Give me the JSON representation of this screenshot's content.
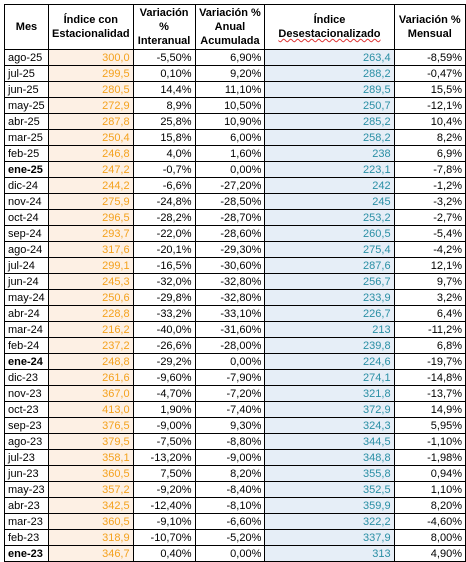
{
  "headers": {
    "mes": "Mes",
    "indice_con": "Índice con Estacionalidad",
    "var_interanual": "Variación % Interanual",
    "var_acumulada": "Variación % Anual Acumulada",
    "indice_des_a": "Índice ",
    "indice_des_b": "Desestacionalizado",
    "var_mensual": "Variación % Mensual"
  },
  "rows": [
    {
      "mes": "ago-25",
      "ie": "300,0",
      "vi": "-5,50%",
      "va": "6,90%",
      "id": "263,4",
      "vm": "-8,59%",
      "bold": false
    },
    {
      "mes": "jul-25",
      "ie": "299,5",
      "vi": "0,10%",
      "va": "9,20%",
      "id": "288,2",
      "vm": "-0,47%",
      "bold": false
    },
    {
      "mes": "jun-25",
      "ie": "280,5",
      "vi": "14,4%",
      "va": "11,10%",
      "id": "289,5",
      "vm": "15,5%",
      "bold": false
    },
    {
      "mes": "may-25",
      "ie": "272,9",
      "vi": "8,9%",
      "va": "10,50%",
      "id": "250,7",
      "vm": "-12,1%",
      "bold": false
    },
    {
      "mes": "abr-25",
      "ie": "287,8",
      "vi": "25,8%",
      "va": "10,90%",
      "id": "285,2",
      "vm": "10,4%",
      "bold": false
    },
    {
      "mes": "mar-25",
      "ie": "250,4",
      "vi": "15,8%",
      "va": "6,00%",
      "id": "258,2",
      "vm": "8,2%",
      "bold": false
    },
    {
      "mes": "feb-25",
      "ie": "246,8",
      "vi": "4,0%",
      "va": "1,60%",
      "id": "238",
      "vm": "6,9%",
      "bold": false
    },
    {
      "mes": "ene-25",
      "ie": "247,2",
      "vi": "-0,7%",
      "va": "0,00%",
      "id": "223,1",
      "vm": "-7,8%",
      "bold": true
    },
    {
      "mes": "dic-24",
      "ie": "244,2",
      "vi": "-6,6%",
      "va": "-27,20%",
      "id": "242",
      "vm": "-1,2%",
      "bold": false
    },
    {
      "mes": "nov-24",
      "ie": "275,9",
      "vi": "-24,8%",
      "va": "-28,50%",
      "id": "245",
      "vm": "-3,2%",
      "bold": false
    },
    {
      "mes": "oct-24",
      "ie": "296,5",
      "vi": "-28,2%",
      "va": "-28,70%",
      "id": "253,2",
      "vm": "-2,7%",
      "bold": false
    },
    {
      "mes": "sep-24",
      "ie": "293,7",
      "vi": "-22,0%",
      "va": "-28,60%",
      "id": "260,5",
      "vm": "-5,4%",
      "bold": false
    },
    {
      "mes": "ago-24",
      "ie": "317,6",
      "vi": "-20,1%",
      "va": "-29,30%",
      "id": "275,4",
      "vm": "-4,2%",
      "bold": false
    },
    {
      "mes": "jul-24",
      "ie": "299,1",
      "vi": "-16,5%",
      "va": "-30,60%",
      "id": "287,6",
      "vm": "12,1%",
      "bold": false
    },
    {
      "mes": "jun-24",
      "ie": "245,3",
      "vi": "-32,0%",
      "va": "-32,80%",
      "id": "256,7",
      "vm": "9,7%",
      "bold": false
    },
    {
      "mes": "may-24",
      "ie": "250,6",
      "vi": "-29,8%",
      "va": "-32,80%",
      "id": "233,9",
      "vm": "3,2%",
      "bold": false
    },
    {
      "mes": "abr-24",
      "ie": "228,8",
      "vi": "-33,2%",
      "va": "-33,10%",
      "id": "226,7",
      "vm": "6,4%",
      "bold": false
    },
    {
      "mes": "mar-24",
      "ie": "216,2",
      "vi": "-40,0%",
      "va": "-31,60%",
      "id": "213",
      "vm": "-11,2%",
      "bold": false
    },
    {
      "mes": "feb-24",
      "ie": "237,2",
      "vi": "-26,6%",
      "va": "-28,00%",
      "id": "239,8",
      "vm": "6,8%",
      "bold": false
    },
    {
      "mes": "ene-24",
      "ie": "248,8",
      "vi": "-29,2%",
      "va": "0,00%",
      "id": "224,6",
      "vm": "-19,7%",
      "bold": true
    },
    {
      "mes": "dic-23",
      "ie": "261,6",
      "vi": "-9,60%",
      "va": "-7,90%",
      "id": "274,1",
      "vm": "-14,8%",
      "bold": false
    },
    {
      "mes": "nov-23",
      "ie": "367,0",
      "vi": "-4,70%",
      "va": "-7,20%",
      "id": "321,8",
      "vm": "-13,7%",
      "bold": false
    },
    {
      "mes": "oct-23",
      "ie": "413,0",
      "vi": "1,90%",
      "va": "-7,40%",
      "id": "372,9",
      "vm": "14,9%",
      "bold": false
    },
    {
      "mes": "sep-23",
      "ie": "376,5",
      "vi": "-9,00%",
      "va": "9,30%",
      "id": "324,3",
      "vm": "5,95%",
      "bold": false
    },
    {
      "mes": "ago-23",
      "ie": "379,5",
      "vi": "-7,50%",
      "va": "-8,80%",
      "id": "344,5",
      "vm": "-1,10%",
      "bold": false
    },
    {
      "mes": "jul-23",
      "ie": "358,1",
      "vi": "-13,20%",
      "va": "-9,00%",
      "id": "348,8",
      "vm": "-1,98%",
      "bold": false
    },
    {
      "mes": "jun-23",
      "ie": "360,5",
      "vi": "7,50%",
      "va": "8,20%",
      "id": "355,8",
      "vm": "0,94%",
      "bold": false
    },
    {
      "mes": "may-23",
      "ie": "357,2",
      "vi": "-9,20%",
      "va": "-8,40%",
      "id": "352,5",
      "vm": "1,10%",
      "bold": false
    },
    {
      "mes": "abr-23",
      "ie": "342,5",
      "vi": "-12,40%",
      "va": "-8,10%",
      "id": "359,9",
      "vm": "8,20%",
      "bold": false
    },
    {
      "mes": "mar-23",
      "ie": "360,5",
      "vi": "-9,10%",
      "va": "-6,60%",
      "id": "322,2",
      "vm": "-4,60%",
      "bold": false
    },
    {
      "mes": "feb-23",
      "ie": "318,9",
      "vi": "-10,70%",
      "va": "-5,20%",
      "id": "337,9",
      "vm": "8,00%",
      "bold": false
    },
    {
      "mes": "ene-23",
      "ie": "346,7",
      "vi": "0,40%",
      "va": "0,00%",
      "id": "313",
      "vm": "4,90%",
      "bold": true
    }
  ]
}
